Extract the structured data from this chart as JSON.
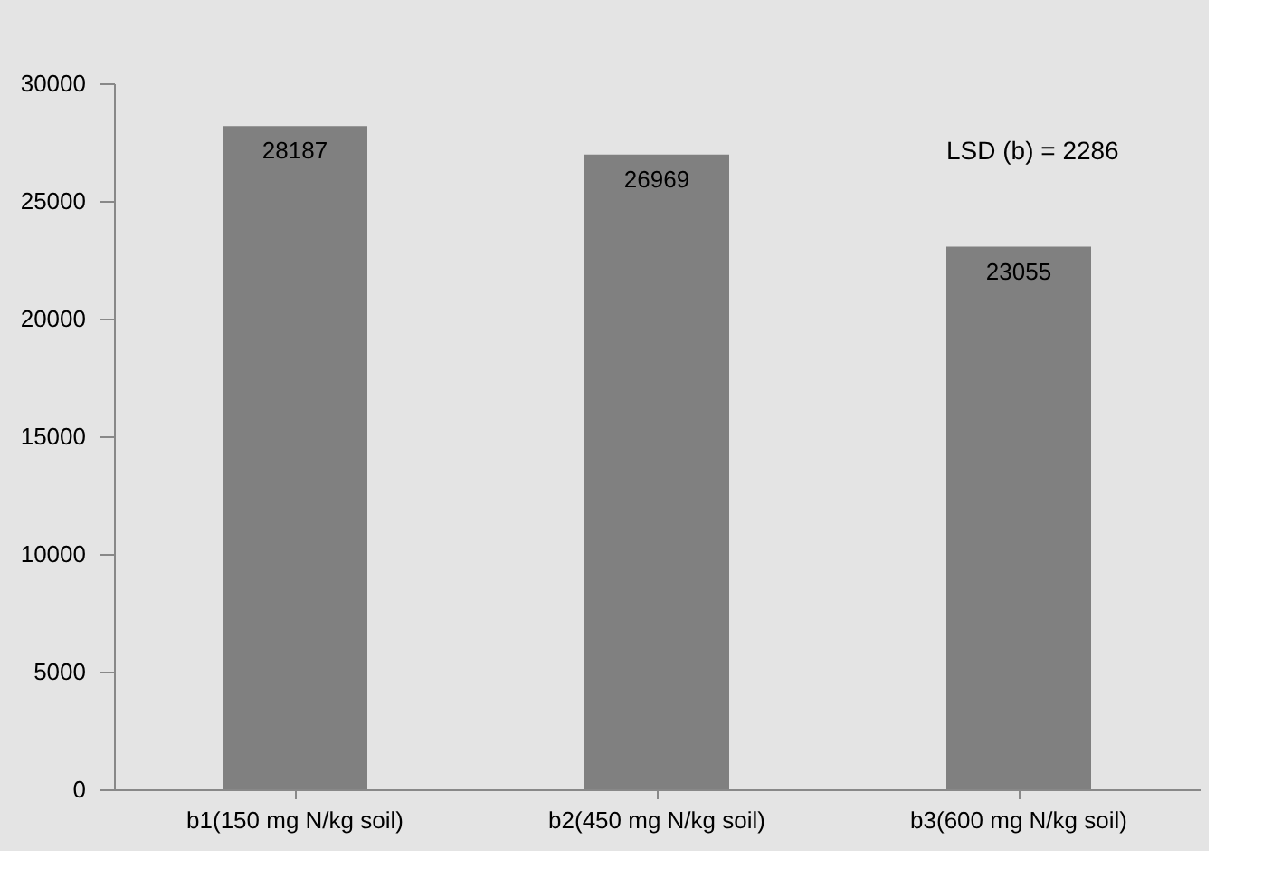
{
  "chart_data": {
    "type": "bar",
    "categories": [
      "b1(150 mg N/kg soil)",
      "b2(450 mg N/kg soil)",
      "b3(600 mg N/kg soil)"
    ],
    "values": [
      28187,
      26969,
      23055
    ],
    "color": "#808080",
    "ylim": [
      0,
      30000
    ],
    "yticks": [
      0,
      5000,
      10000,
      15000,
      20000,
      25000,
      30000
    ],
    "grid": false,
    "data_labels": true,
    "annotations": [
      "LSD (b) = 2286"
    ]
  }
}
